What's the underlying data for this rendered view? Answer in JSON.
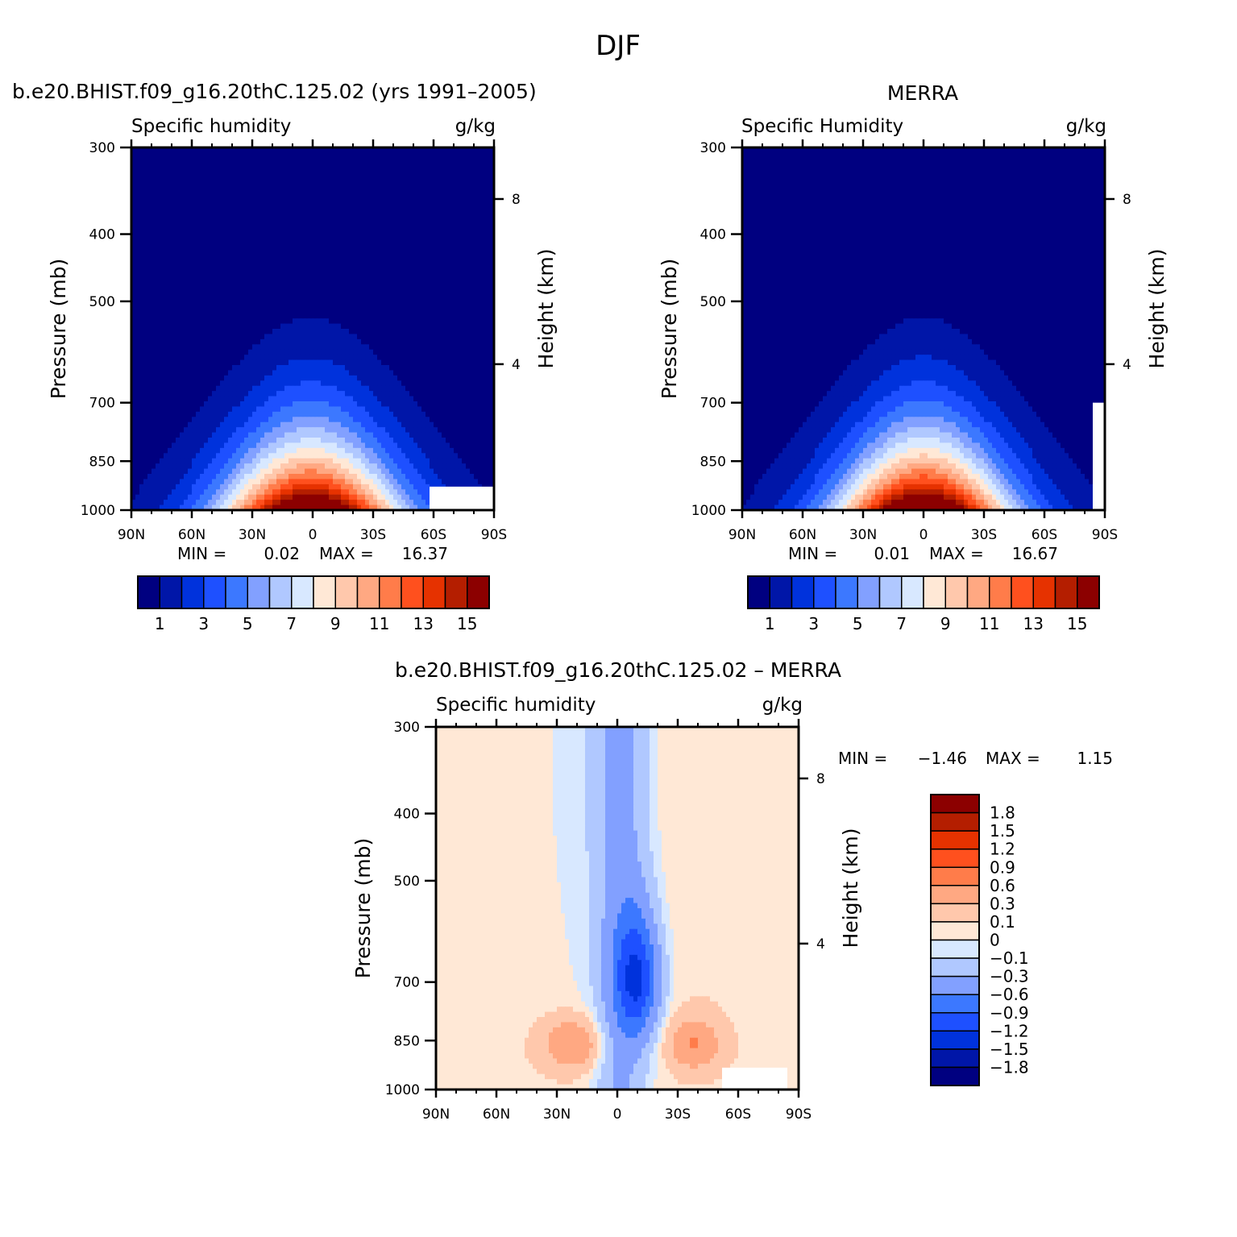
{
  "page_title": "DJF",
  "colors": {
    "model_palette": [
      "#000080",
      "#0016a8",
      "#0032dc",
      "#1e50ff",
      "#3c78ff",
      "#82a0ff",
      "#b0c8ff",
      "#d8e8ff",
      "#ffe8d6",
      "#ffc8ac",
      "#ffa882",
      "#ff7c4a",
      "#ff501e",
      "#e63200",
      "#b41e00",
      "#8c0000"
    ],
    "diff_palette": [
      "#000080",
      "#0016a8",
      "#0032dc",
      "#1e50ff",
      "#3c78ff",
      "#82a0ff",
      "#b0c8ff",
      "#d8e8ff",
      "#ffe8d6",
      "#ffc8ac",
      "#ffa882",
      "#ff7c4a",
      "#ff501e",
      "#e63200",
      "#b41e00",
      "#8c0000"
    ]
  },
  "chart_data": [
    {
      "type": "heatmap",
      "title": "b.e20.BHIST.f09_g16.20thC.125.02 (yrs 1991–2005)",
      "left_label": "Specific humidity",
      "right_label": "g/kg",
      "ylabel": "Pressure (mb)",
      "ylabel_right": "Height (km)",
      "x_ticks": [
        "90N",
        "60N",
        "30N",
        "0",
        "30S",
        "60S",
        "90S"
      ],
      "y_ticks": [
        "300",
        "400",
        "500",
        "700",
        "850",
        "1000"
      ],
      "y_ticks_right": [
        "8",
        "4"
      ],
      "ylim": [
        1000,
        300
      ],
      "xlim": [
        90,
        -90
      ],
      "min_label": "MIN =",
      "min_value": "0.02",
      "max_label": "MAX =",
      "max_value": "16.37",
      "colorbar_labels": [
        "1",
        "3",
        "5",
        "7",
        "9",
        "11",
        "13",
        "15"
      ],
      "field": {
        "center_lat": 1,
        "peak": 16.37,
        "surface_halfwidth": 30,
        "ridge_top_mb": 400
      }
    },
    {
      "type": "heatmap",
      "title": "MERRA",
      "left_label": "Specific Humidity",
      "right_label": "g/kg",
      "ylabel": "Pressure (mb)",
      "ylabel_right": "Height (km)",
      "x_ticks": [
        "90N",
        "60N",
        "30N",
        "0",
        "30S",
        "60S",
        "90S"
      ],
      "y_ticks": [
        "300",
        "400",
        "500",
        "700",
        "850",
        "1000"
      ],
      "y_ticks_right": [
        "8",
        "4"
      ],
      "ylim": [
        1000,
        300
      ],
      "xlim": [
        90,
        -90
      ],
      "min_label": "MIN =",
      "min_value": "0.01",
      "max_label": "MAX =",
      "max_value": "16.67",
      "colorbar_labels": [
        "1",
        "3",
        "5",
        "7",
        "9",
        "11",
        "13",
        "15"
      ],
      "field": {
        "center_lat": 0,
        "peak": 16.67,
        "surface_halfwidth": 29,
        "ridge_top_mb": 380
      }
    },
    {
      "type": "heatmap",
      "title": "b.e20.BHIST.f09_g16.20thC.125.02 – MERRA",
      "left_label": "Specific humidity",
      "right_label": "g/kg",
      "ylabel": "Pressure (mb)",
      "ylabel_right": "Height (km)",
      "x_ticks": [
        "90N",
        "60N",
        "30N",
        "0",
        "30S",
        "60S",
        "90S"
      ],
      "y_ticks": [
        "300",
        "400",
        "500",
        "700",
        "850",
        "1000"
      ],
      "y_ticks_right": [
        "8",
        "4"
      ],
      "ylim": [
        1000,
        300
      ],
      "xlim": [
        90,
        -90
      ],
      "min_label": "MIN =",
      "min_value": "−1.46",
      "max_label": "MAX =",
      "max_value": "1.15",
      "colorbar_labels": [
        "1.8",
        "1.5",
        "1.2",
        "0.9",
        "0.6",
        "0.3",
        "0.1",
        "0",
        "−0.1",
        "−0.3",
        "−0.6",
        "−0.9",
        "−1.2",
        "−1.5",
        "−1.8"
      ],
      "levels": [
        -1.8,
        -1.5,
        -1.2,
        -0.9,
        -0.6,
        -0.3,
        -0.1,
        0,
        0.1,
        0.3,
        0.6,
        0.9,
        1.2,
        1.5,
        1.8
      ]
    }
  ]
}
